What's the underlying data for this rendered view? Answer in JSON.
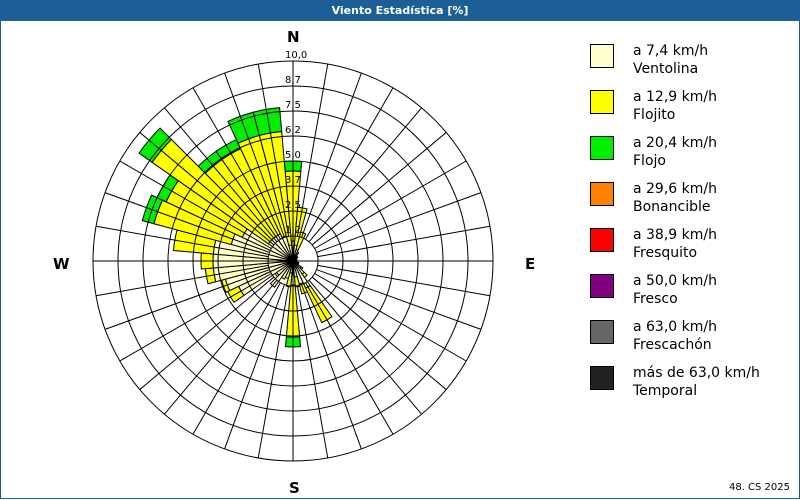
{
  "title": "Viento Estadística [%]",
  "compass": {
    "n": "N",
    "e": "E",
    "s": "S",
    "w": "W"
  },
  "footer": "48. CS 2025",
  "legend": [
    {
      "range": "a 7,4 km/h",
      "name": "Ventolina",
      "color": "#ffffcc"
    },
    {
      "range": "a 12,9 km/h",
      "name": "Flojito",
      "color": "#ffff00"
    },
    {
      "range": "a 20,4 km/h",
      "name": "Flojo",
      "color": "#00ee00"
    },
    {
      "range": "a 29,6 km/h",
      "name": "Bonancible",
      "color": "#ff8000"
    },
    {
      "range": "a 38,9 km/h",
      "name": "Fresquito",
      "color": "#ff0000"
    },
    {
      "range": "a 50,0 km/h",
      "name": "Fresco",
      "color": "#800080"
    },
    {
      "range": "a 63,0 km/h",
      "name": "Frescachón",
      "color": "#666666"
    },
    {
      "range": "más de 63,0 km/h",
      "name": "Temporal",
      "color": "#222222"
    }
  ],
  "chart_data": {
    "type": "windrose",
    "title": "Viento Estadística [%]",
    "radial_unit": "%",
    "radial_ticks": [
      "1,2",
      "2,5",
      "3,7",
      "5,0",
      "6,2",
      "7,5",
      "8,7",
      "10,0"
    ],
    "radial_max": 10.0,
    "direction_step_deg": 10,
    "series_names": [
      "Ventolina",
      "Flojito",
      "Flojo"
    ],
    "directions": [
      {
        "deg": 0,
        "cum": [
          1.0,
          4.5,
          5.0
        ]
      },
      {
        "deg": 10,
        "cum": [
          0.8,
          2.7,
          2.7
        ]
      },
      {
        "deg": 20,
        "cum": [
          0.6,
          1.5,
          1.5
        ]
      },
      {
        "deg": 30,
        "cum": [
          0.4,
          0.5,
          0.5
        ]
      },
      {
        "deg": 40,
        "cum": [
          0.3,
          0.3,
          0.3
        ]
      },
      {
        "deg": 50,
        "cum": [
          0.3,
          0.3,
          0.3
        ]
      },
      {
        "deg": 60,
        "cum": [
          0.2,
          0.2,
          0.2
        ]
      },
      {
        "deg": 70,
        "cum": [
          0.2,
          0.2,
          0.2
        ]
      },
      {
        "deg": 80,
        "cum": [
          0.2,
          0.2,
          0.2
        ]
      },
      {
        "deg": 90,
        "cum": [
          0.2,
          0.2,
          0.2
        ]
      },
      {
        "deg": 100,
        "cum": [
          0.2,
          0.2,
          0.2
        ]
      },
      {
        "deg": 110,
        "cum": [
          0.3,
          0.3,
          0.3
        ]
      },
      {
        "deg": 120,
        "cum": [
          0.3,
          0.3,
          0.3
        ]
      },
      {
        "deg": 130,
        "cum": [
          0.5,
          0.6,
          0.6
        ]
      },
      {
        "deg": 140,
        "cum": [
          0.8,
          1.0,
          1.0
        ]
      },
      {
        "deg": 150,
        "cum": [
          1.5,
          3.4,
          3.4
        ]
      },
      {
        "deg": 160,
        "cum": [
          1.2,
          1.7,
          1.7
        ]
      },
      {
        "deg": 170,
        "cum": [
          0.8,
          1.3,
          1.3
        ]
      },
      {
        "deg": 180,
        "cum": [
          1.2,
          3.8,
          4.3
        ]
      },
      {
        "deg": 190,
        "cum": [
          0.6,
          1.3,
          1.3
        ]
      },
      {
        "deg": 200,
        "cum": [
          0.9,
          0.9,
          0.9
        ]
      },
      {
        "deg": 210,
        "cum": [
          1.0,
          1.0,
          1.0
        ]
      },
      {
        "deg": 220,
        "cum": [
          1.6,
          1.6,
          1.6
        ]
      },
      {
        "deg": 230,
        "cum": [
          1.0,
          1.1,
          1.1
        ]
      },
      {
        "deg": 240,
        "cum": [
          3.0,
          3.6,
          3.6
        ]
      },
      {
        "deg": 250,
        "cum": [
          3.5,
          3.7,
          3.7
        ]
      },
      {
        "deg": 260,
        "cum": [
          4.0,
          4.4,
          4.4
        ]
      },
      {
        "deg": 270,
        "cum": [
          4.0,
          4.6,
          4.6
        ]
      },
      {
        "deg": 280,
        "cum": [
          4.0,
          6.0,
          6.0
        ]
      },
      {
        "deg": 290,
        "cum": [
          3.2,
          7.2,
          7.8
        ]
      },
      {
        "deg": 300,
        "cum": [
          2.8,
          7.0,
          7.5
        ]
      },
      {
        "deg": 310,
        "cum": [
          1.5,
          8.6,
          9.4
        ]
      },
      {
        "deg": 320,
        "cum": [
          1.5,
          6.2,
          6.7
        ]
      },
      {
        "deg": 330,
        "cum": [
          1.5,
          6.2,
          6.7
        ]
      },
      {
        "deg": 340,
        "cum": [
          1.3,
          6.5,
          7.7
        ]
      },
      {
        "deg": 350,
        "cum": [
          0.8,
          6.5,
          7.7
        ]
      }
    ],
    "legend_position": "right"
  }
}
